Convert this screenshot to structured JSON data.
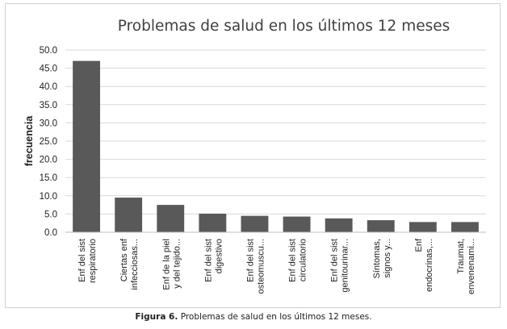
{
  "caption": {
    "label": "Figura 6.",
    "text": "Problemas de salud en los últimos 12 meses."
  },
  "chart_data": {
    "type": "bar",
    "title": "Problemas de salud en los últimos 12 meses",
    "xlabel": "",
    "ylabel": "frecuencia",
    "ylim": [
      0,
      50
    ],
    "yticks": [
      "50.0",
      "45.0",
      "40.0",
      "35.0",
      "30.0",
      "25.0",
      "20.0",
      "15.0",
      "10.0",
      "5.0",
      "0.0"
    ],
    "grid": true,
    "bar_color": "#595959",
    "categories": [
      [
        "Enf del sist",
        "respiratorio"
      ],
      [
        "Ciertas enf",
        "infecciosas..."
      ],
      [
        "Enf de la piel",
        "y del tejido..."
      ],
      [
        "Enf del sist",
        "digestivo"
      ],
      [
        "Enf del sist",
        "osteomuscu..."
      ],
      [
        "Enf del sist",
        "circulatorio"
      ],
      [
        "Enf del sist",
        "genitourinar..."
      ],
      [
        "Síntomas,",
        "signos y..."
      ],
      [
        "Enf",
        "endocrinas,..."
      ],
      [
        "Traumat,",
        "envenenami..."
      ]
    ],
    "values": [
      47.0,
      9.5,
      7.5,
      5.1,
      4.5,
      4.3,
      3.8,
      3.3,
      2.8,
      2.8
    ]
  }
}
